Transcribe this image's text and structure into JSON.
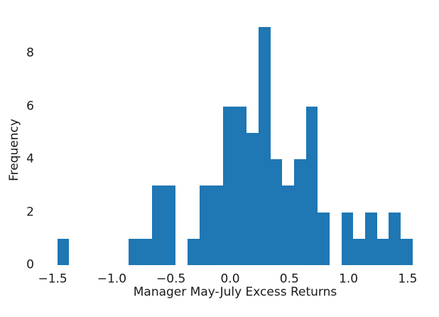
{
  "figure": {
    "background_color": "#ffffff",
    "text_color": "#1a1a1a"
  },
  "chart_data": {
    "type": "bar",
    "subtype": "histogram",
    "title": "",
    "xlabel": "Manager May-July Excess Returns",
    "ylabel": "Frequency",
    "bar_color": "#1f77b4",
    "grid": false,
    "legend": null,
    "bin_start": -1.46,
    "bin_width": 0.1,
    "counts": [
      1,
      0,
      0,
      0,
      0,
      0,
      1,
      1,
      3,
      3,
      0,
      1,
      3,
      3,
      6,
      6,
      5,
      9,
      4,
      3,
      4,
      6,
      2,
      0,
      2,
      1,
      2,
      1,
      2,
      1
    ],
    "total_observations": 70,
    "x_ticks": [
      {
        "value": -1.5,
        "label": "−1.5"
      },
      {
        "value": -1.0,
        "label": "−1.0"
      },
      {
        "value": -0.5,
        "label": "−0.5"
      },
      {
        "value": 0.0,
        "label": "0.0"
      },
      {
        "value": 0.5,
        "label": "0.5"
      },
      {
        "value": 1.0,
        "label": "1.0"
      },
      {
        "value": 1.5,
        "label": "1.5"
      }
    ],
    "y_ticks": [
      {
        "value": 0,
        "label": "0"
      },
      {
        "value": 2,
        "label": "2"
      },
      {
        "value": 4,
        "label": "4"
      },
      {
        "value": 6,
        "label": "6"
      },
      {
        "value": 8,
        "label": "8"
      }
    ],
    "xlim": [
      -1.65,
      1.65
    ],
    "ylim": [
      0,
      9.45
    ]
  }
}
